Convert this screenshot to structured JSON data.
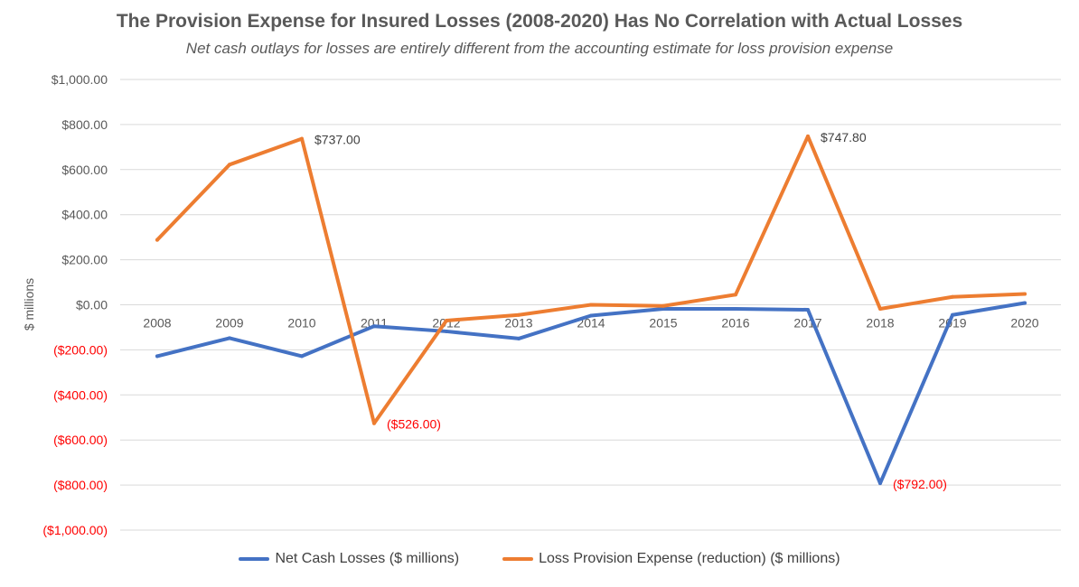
{
  "chart_data": {
    "type": "line",
    "title": "The Provision Expense for Insured Losses (2008-2020) Has No Correlation with Actual Losses",
    "subtitle": "Net cash outlays for losses are entirely different from the accounting estimate for loss provision expense",
    "ylabel": "$ millions",
    "xlabel": "",
    "ylim": [
      -1000,
      1000
    ],
    "y_ticks": [
      1000,
      800,
      600,
      400,
      200,
      0,
      -200,
      -400,
      -600,
      -800,
      -1000
    ],
    "y_tick_labels": [
      "$1,000.00",
      "$800.00",
      "$600.00",
      "$400.00",
      "$200.00",
      "$0.00",
      "($200.00)",
      "($400.00)",
      "($600.00)",
      "($800.00)",
      "($1,000.00)"
    ],
    "negative_tick_color": "#ff0000",
    "categories": [
      "2008",
      "2009",
      "2010",
      "2011",
      "2012",
      "2013",
      "2014",
      "2015",
      "2016",
      "2017",
      "2018",
      "2019",
      "2020"
    ],
    "grid": true,
    "legend_position": "bottom",
    "series": [
      {
        "name": "Net Cash Losses ($ millions)",
        "color": "#4472c4",
        "values": [
          -228,
          -148,
          -228,
          -95,
          -118,
          -150,
          -48,
          -18,
          -18,
          -22,
          -792,
          -45,
          8
        ]
      },
      {
        "name": "Loss Provision Expense (reduction) ($ millions)",
        "color": "#ed7d31",
        "values": [
          288,
          622,
          737,
          -526,
          -70,
          -45,
          0,
          -5,
          45,
          747.8,
          -18,
          35,
          48
        ]
      }
    ],
    "annotations": [
      {
        "series": 1,
        "index": 2,
        "text": "$737.00",
        "color": "#404040"
      },
      {
        "series": 1,
        "index": 3,
        "text": "($526.00)",
        "color": "#ff0000"
      },
      {
        "series": 1,
        "index": 9,
        "text": "$747.80",
        "color": "#404040"
      },
      {
        "series": 0,
        "index": 10,
        "text": "($792.00)",
        "color": "#ff0000"
      }
    ]
  }
}
